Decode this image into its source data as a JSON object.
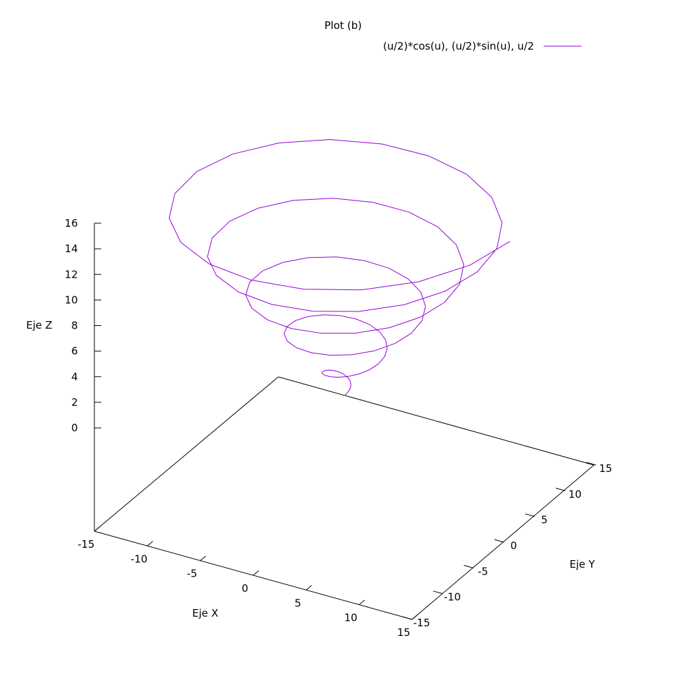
{
  "chart_data": {
    "type": "line",
    "title": "Plot (b)",
    "xlabel": "Eje X",
    "ylabel": "Eje Y",
    "zlabel": "Eje Z",
    "xlim": [
      -15,
      15
    ],
    "ylim": [
      -15,
      15
    ],
    "zlim": [
      0,
      16
    ],
    "xticks": [
      -15,
      -10,
      -5,
      0,
      5,
      10,
      15
    ],
    "yticks": [
      -15,
      -10,
      -5,
      0,
      5,
      10,
      15
    ],
    "zticks": [
      0,
      2,
      4,
      6,
      8,
      10,
      12,
      14,
      16
    ],
    "grid": false,
    "legend_position": "top-right",
    "series": [
      {
        "name": "(u/2)*cos(u), (u/2)*sin(u), u/2",
        "color": "#9400d3",
        "param": "u",
        "u_range": [
          0,
          31.4
        ],
        "x_expr": "(u/2)*cos(u)",
        "y_expr": "(u/2)*sin(u)",
        "z_expr": "u/2"
      }
    ]
  }
}
